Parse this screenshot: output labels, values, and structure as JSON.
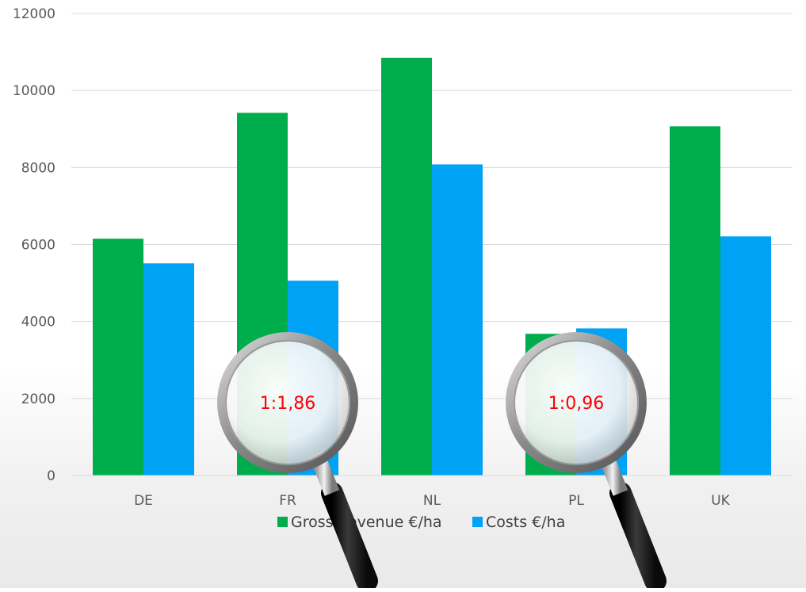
{
  "chart_data": {
    "type": "bar",
    "categories": [
      "DE",
      "FR",
      "NL",
      "PL",
      "UK"
    ],
    "series": [
      {
        "name": "Gross Revenue €/ha",
        "color": "#00ad4c",
        "values": [
          6150,
          9420,
          10850,
          3680,
          9070
        ]
      },
      {
        "name": "Costs €/ha",
        "color": "#00a2f5",
        "values": [
          5510,
          5060,
          8080,
          3820,
          6210
        ]
      }
    ],
    "yticks": [
      0,
      2000,
      4000,
      6000,
      8000,
      10000,
      12000
    ],
    "ylim": [
      0,
      12000
    ],
    "grid": true,
    "legend_position": "bottom",
    "annotations": [
      {
        "text": "1:1,86",
        "category": "FR",
        "icon": "magnifying-glass-icon"
      },
      {
        "text": "1:0,96",
        "category": "PL",
        "icon": "magnifying-glass-icon"
      }
    ]
  }
}
